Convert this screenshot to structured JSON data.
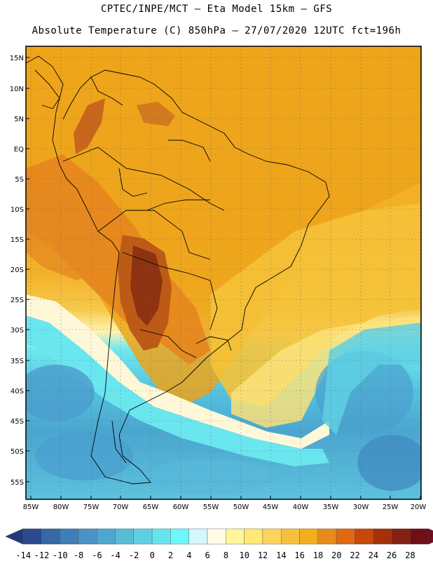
{
  "header": {
    "line1": "CPTEC/INPE/MCT –  Eta Model 15km – GFS",
    "line2": "Absolute Temperature (C) 850hPa – 27/07/2020 12UTC fct=196h"
  },
  "map": {
    "lat_labels": [
      "15N",
      "10N",
      "5N",
      "EQ",
      "5S",
      "10S",
      "15S",
      "20S",
      "25S",
      "30S",
      "35S",
      "40S",
      "45S",
      "50S",
      "55S"
    ],
    "lon_labels": [
      "85W",
      "80W",
      "75W",
      "70W",
      "65W",
      "60W",
      "55W",
      "50W",
      "45W",
      "40W",
      "35W",
      "30W",
      "25W",
      "20W"
    ]
  },
  "colorbar": {
    "ticks": [
      "-14",
      "-12",
      "-10",
      "-8",
      "-6",
      "-4",
      "-2",
      "0",
      "2",
      "4",
      "6",
      "8",
      "10",
      "12",
      "14",
      "16",
      "18",
      "20",
      "22",
      "24",
      "26",
      "28"
    ],
    "colors": [
      "#2c4a8e",
      "#3668a6",
      "#3f7fb8",
      "#4a93c6",
      "#4fa6d1",
      "#58bcd9",
      "#5fd0e3",
      "#66e4ee",
      "#6ef6f8",
      "#d4f7fb",
      "#fffbe6",
      "#fff59a",
      "#ffe873",
      "#fcd45c",
      "#f6c03e",
      "#f2ae1c",
      "#e88a1e",
      "#df6a10",
      "#c8480a",
      "#a6300a",
      "#852011",
      "#6f0f18"
    ],
    "low_color": "#1f3a7c",
    "high_color": "#7a0a22"
  }
}
